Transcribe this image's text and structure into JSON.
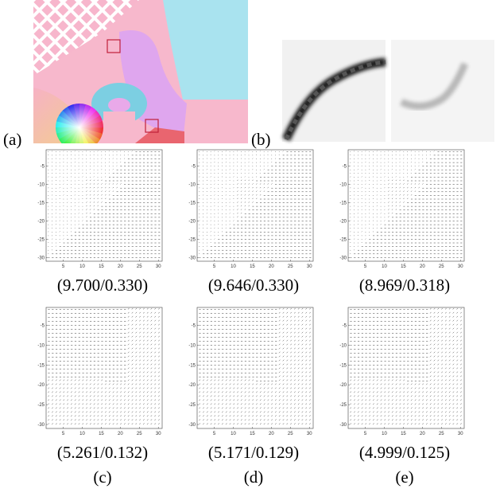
{
  "panel_labels": {
    "a": "(a)",
    "b": "(b)"
  },
  "axis": {
    "xticks": [
      5,
      10,
      15,
      20,
      25,
      30
    ],
    "yticks": [
      -5,
      -10,
      -15,
      -20,
      -25,
      -30
    ]
  },
  "plots": [
    [
      {
        "caption": "(9.700/0.330)"
      },
      {
        "caption": "(9.646/0.330)"
      },
      {
        "caption": "(8.969/0.318)"
      }
    ],
    [
      {
        "caption": "(5.261/0.132)"
      },
      {
        "caption": "(5.171/0.129)"
      },
      {
        "caption": "(4.999/0.125)"
      }
    ]
  ],
  "column_labels": [
    "(c)",
    "(d)",
    "(e)"
  ]
}
